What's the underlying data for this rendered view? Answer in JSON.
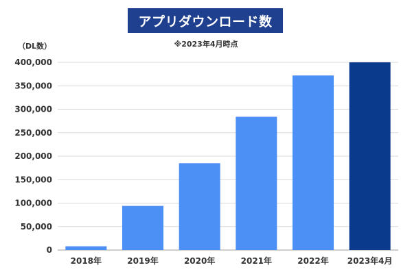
{
  "chart_data": {
    "type": "bar",
    "title": "アプリダウンロード数",
    "subtitle": "※2023年4月時点",
    "ylabel": "（DL数）",
    "xlabel": "",
    "categories": [
      "2018年",
      "2019年",
      "2020年",
      "2021年",
      "2022年",
      "2023年4月"
    ],
    "values": [
      8000,
      94000,
      185000,
      284000,
      372000,
      400000
    ],
    "ylim": [
      0,
      400000
    ],
    "yticks": [
      "0",
      "50,000",
      "100,000",
      "150,000",
      "200,000",
      "250,000",
      "300,000",
      "350,000",
      "400,000"
    ],
    "grid": true,
    "colors": {
      "bar": "#4d90f5",
      "highlight_bar": "#0a3a8c",
      "title_bg": "#1f3f8f",
      "grid": "#d9d9d9"
    },
    "highlight_index": 5
  }
}
